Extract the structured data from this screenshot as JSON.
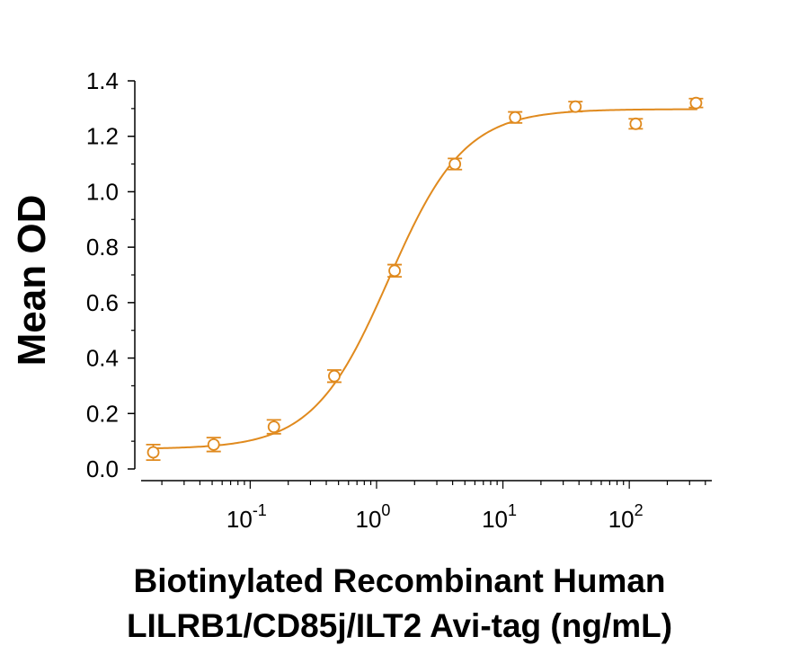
{
  "chart_data": {
    "type": "scatter",
    "title": "",
    "xlabel_line1": "Biotinylated Recombinant Human",
    "xlabel_line2": "LILRB1/CD85j/ILT2 Avi-tag (ng/mL)",
    "ylabel": "Mean OD",
    "x_scale": "log",
    "xlim": [
      0.0137,
      450
    ],
    "ylim": [
      0.0,
      1.4
    ],
    "y_ticks": [
      "0.0",
      "0.2",
      "0.4",
      "0.6",
      "0.8",
      "1.0",
      "1.2",
      "1.4"
    ],
    "x_ticks": [
      {
        "base": "10",
        "exp": "-1",
        "value": 0.1
      },
      {
        "base": "10",
        "exp": "0",
        "value": 1
      },
      {
        "base": "10",
        "exp": "1",
        "value": 10
      },
      {
        "base": "10",
        "exp": "2",
        "value": 100
      }
    ],
    "grid": false,
    "color": "#e08a1e",
    "series": [
      {
        "x": [
          0.0171,
          0.0514,
          0.154,
          0.463,
          1.39,
          4.17,
          12.5,
          37.5,
          112.5,
          337.5
        ],
        "y": [
          0.06,
          0.088,
          0.152,
          0.335,
          0.715,
          1.1,
          1.268,
          1.307,
          1.245,
          1.32
        ],
        "err": [
          0.028,
          0.025,
          0.025,
          0.022,
          0.022,
          0.02,
          0.02,
          0.018,
          0.018,
          0.016
        ]
      }
    ],
    "fit": {
      "model": "4PL",
      "bottom": 0.072,
      "top": 1.298,
      "ec50": 1.25,
      "hill": 1.45
    }
  }
}
